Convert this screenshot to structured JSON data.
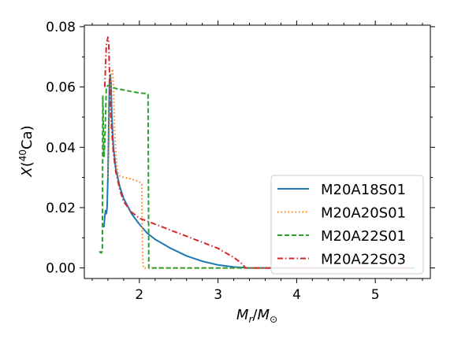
{
  "chart_data": {
    "type": "line",
    "xlabel_main": "M",
    "xlabel_sub": "r",
    "xlabel_sep": "/",
    "xlabel_main2": "M",
    "xlabel_sub2": "⊙",
    "ylabel_main": "X",
    "ylabel_open": "(",
    "ylabel_sup": "40",
    "ylabel_rest": "Ca)",
    "xlim": [
      1.3,
      5.7
    ],
    "ylim": [
      -0.0035,
      0.0805
    ],
    "xticks": [
      2,
      3,
      4,
      5
    ],
    "xtick_labels": [
      "2",
      "3",
      "4",
      "5"
    ],
    "yticks": [
      0.0,
      0.02,
      0.04,
      0.06,
      0.08
    ],
    "ytick_labels": [
      "0.00",
      "0.02",
      "0.04",
      "0.06",
      "0.08"
    ],
    "xminor": [
      1.4,
      1.6,
      1.8,
      2.2,
      2.4,
      2.6,
      2.8,
      3.2,
      3.4,
      3.6,
      3.8,
      4.2,
      4.4,
      4.6,
      4.8,
      5.2,
      5.4,
      5.6
    ],
    "yminor": [
      0.01,
      0.03,
      0.05,
      0.07
    ],
    "legend_position": "lower-right",
    "series": [
      {
        "name": "M20A18S01",
        "color": "#1f77b4",
        "style": "solid",
        "points": [
          [
            1.55,
            0.0135
          ],
          [
            1.56,
            0.017
          ],
          [
            1.57,
            0.019
          ],
          [
            1.58,
            0.018
          ],
          [
            1.59,
            0.02
          ],
          [
            1.6,
            0.03
          ],
          [
            1.61,
            0.046
          ],
          [
            1.62,
            0.062
          ],
          [
            1.63,
            0.064
          ],
          [
            1.64,
            0.061
          ],
          [
            1.65,
            0.05
          ],
          [
            1.67,
            0.04
          ],
          [
            1.7,
            0.033
          ],
          [
            1.75,
            0.027
          ],
          [
            1.8,
            0.023
          ],
          [
            1.9,
            0.018
          ],
          [
            2.0,
            0.0145
          ],
          [
            2.1,
            0.0115
          ],
          [
            2.2,
            0.0095
          ],
          [
            2.4,
            0.0065
          ],
          [
            2.6,
            0.004
          ],
          [
            2.8,
            0.0022
          ],
          [
            3.0,
            0.001
          ],
          [
            3.2,
            0.0003
          ],
          [
            3.4,
            0.0
          ],
          [
            5.5,
            0.0
          ]
        ]
      },
      {
        "name": "M20A20S01",
        "color": "#ff7f0e",
        "style": "dotted",
        "points": [
          [
            1.6,
            0.03
          ],
          [
            1.62,
            0.05
          ],
          [
            1.64,
            0.064
          ],
          [
            1.66,
            0.066
          ],
          [
            1.67,
            0.06
          ],
          [
            1.68,
            0.05
          ],
          [
            1.7,
            0.038
          ],
          [
            1.72,
            0.032
          ],
          [
            1.75,
            0.0305
          ],
          [
            1.8,
            0.03
          ],
          [
            1.9,
            0.0295
          ],
          [
            2.0,
            0.0285
          ],
          [
            2.03,
            0.028
          ],
          [
            2.04,
            0.005
          ],
          [
            2.05,
            0.0
          ],
          [
            5.5,
            0.0
          ]
        ]
      },
      {
        "name": "M20A22S01",
        "color": "#2ca02c",
        "style": "dashed",
        "points": [
          [
            1.49,
            0.0055
          ],
          [
            1.51,
            0.005
          ],
          [
            1.52,
            0.005
          ],
          [
            1.53,
            0.006
          ],
          [
            1.535,
            0.057
          ],
          [
            1.54,
            0.05
          ],
          [
            1.545,
            0.04
          ],
          [
            1.55,
            0.037
          ],
          [
            1.56,
            0.041
          ],
          [
            1.58,
            0.06
          ],
          [
            1.6,
            0.0605
          ],
          [
            1.7,
            0.0595
          ],
          [
            1.8,
            0.059
          ],
          [
            1.9,
            0.0585
          ],
          [
            2.0,
            0.058
          ],
          [
            2.1,
            0.0578
          ],
          [
            2.11,
            0.0575
          ],
          [
            2.12,
            0.0
          ],
          [
            5.5,
            0.0
          ]
        ]
      },
      {
        "name": "M20A22S03",
        "color": "#d62728",
        "style": "dashdot",
        "points": [
          [
            1.56,
            0.06
          ],
          [
            1.58,
            0.074
          ],
          [
            1.6,
            0.0765
          ],
          [
            1.61,
            0.075
          ],
          [
            1.62,
            0.065
          ],
          [
            1.63,
            0.054
          ],
          [
            1.65,
            0.045
          ],
          [
            1.67,
            0.038
          ],
          [
            1.7,
            0.032
          ],
          [
            1.75,
            0.026
          ],
          [
            1.8,
            0.022
          ],
          [
            1.9,
            0.0185
          ],
          [
            2.0,
            0.0165
          ],
          [
            2.2,
            0.0145
          ],
          [
            2.5,
            0.0115
          ],
          [
            2.8,
            0.0085
          ],
          [
            3.0,
            0.0065
          ],
          [
            3.2,
            0.0035
          ],
          [
            3.3,
            0.0015
          ],
          [
            3.35,
            0.0
          ],
          [
            5.5,
            0.0
          ]
        ]
      }
    ]
  }
}
